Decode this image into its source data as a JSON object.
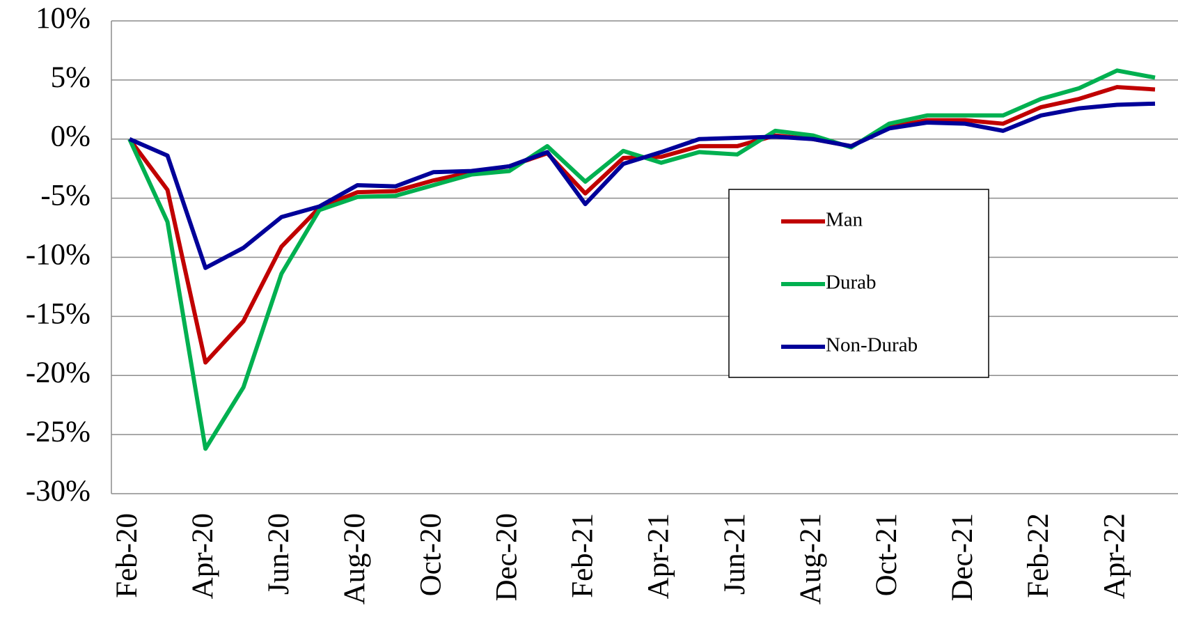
{
  "chart_data": {
    "type": "line",
    "categories": [
      "Feb-20",
      null,
      "Apr-20",
      null,
      "Jun-20",
      null,
      "Aug-20",
      null,
      "Oct-20",
      null,
      "Dec-20",
      null,
      "Feb-21",
      null,
      "Apr-21",
      null,
      "Jun-21",
      null,
      "Aug-21",
      null,
      "Oct-21",
      null,
      "Dec-21",
      null,
      "Feb-22",
      null,
      "Apr-22",
      null
    ],
    "series": [
      {
        "name": "Man",
        "color": "#c00000",
        "values": [
          0,
          -4.3,
          -18.9,
          -15.4,
          -9.1,
          -5.8,
          -4.5,
          -4.4,
          -3.5,
          -2.8,
          -2.3,
          -1.2,
          -4.6,
          -1.6,
          -1.5,
          -0.6,
          -0.6,
          0.3,
          0.0,
          -0.6,
          1.0,
          1.6,
          1.6,
          1.3,
          2.7,
          3.4,
          4.4,
          4.2
        ]
      },
      {
        "name": "Durab",
        "color": "#00b050",
        "values": [
          0,
          -7,
          -26.2,
          -21,
          -11.4,
          -6,
          -4.9,
          -4.8,
          -3.9,
          -3.0,
          -2.7,
          -0.6,
          -3.6,
          -1.0,
          -2.0,
          -1.1,
          -1.3,
          0.7,
          0.3,
          -0.7,
          1.3,
          2.0,
          2.0,
          2.0,
          3.4,
          4.3,
          5.8,
          5.2
        ]
      },
      {
        "name": "Non-Durab",
        "color": "#000099",
        "values": [
          0,
          -1.4,
          -10.9,
          -9.2,
          -6.6,
          -5.7,
          -3.9,
          -4.0,
          -2.8,
          -2.7,
          -2.3,
          -1.1,
          -5.5,
          -2.1,
          -1.1,
          0.0,
          0.1,
          0.2,
          0.0,
          -0.6,
          0.9,
          1.4,
          1.3,
          0.7,
          2.0,
          2.6,
          2.9,
          3.0
        ]
      }
    ],
    "ylim": [
      -30,
      10
    ],
    "yticks": [
      {
        "value": -30,
        "label": "-30%"
      },
      {
        "value": -25,
        "label": "-25%"
      },
      {
        "value": -20,
        "label": "-20%"
      },
      {
        "value": -15,
        "label": "-15%"
      },
      {
        "value": -10,
        "label": "-10%"
      },
      {
        "value": -5,
        "label": "-5%"
      },
      {
        "value": 0,
        "label": "0%"
      },
      {
        "value": 5,
        "label": "5%"
      },
      {
        "value": 10,
        "label": "10%"
      }
    ],
    "grid": true,
    "legend": "right"
  }
}
